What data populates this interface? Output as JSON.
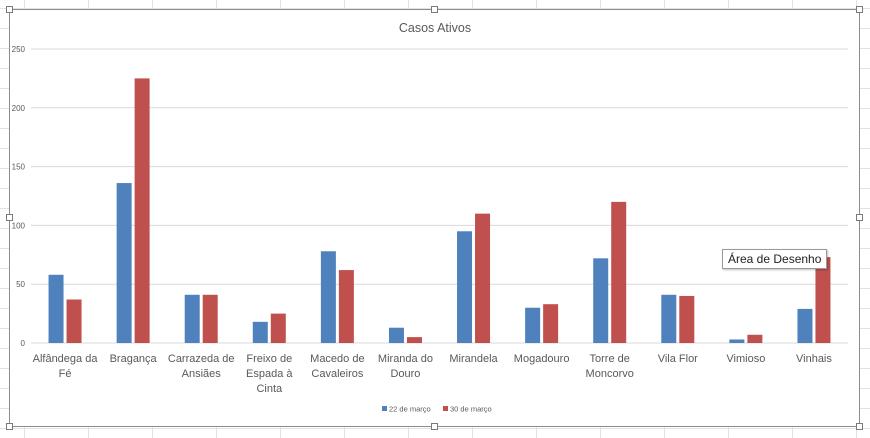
{
  "tooltip": "Área de Desenho",
  "colors": {
    "series1": "#4f81bd",
    "series2": "#c0504d",
    "gridline": "#d9d9d9",
    "axis_text": "#595959"
  },
  "chart_data": {
    "type": "bar",
    "title": "Casos Ativos",
    "xlabel": "",
    "ylabel": "",
    "ylim": [
      0,
      250
    ],
    "yticks": [
      0,
      50,
      100,
      150,
      200,
      250
    ],
    "grid": true,
    "legend": "bottom",
    "categories": [
      [
        "Alfândega da",
        "Fé"
      ],
      [
        "Bragança"
      ],
      [
        "Carrazeda de",
        "Ansiães"
      ],
      [
        "Freixo de",
        "Espada à",
        "Cinta"
      ],
      [
        "Macedo de",
        "Cavaleiros"
      ],
      [
        "Miranda do",
        "Douro"
      ],
      [
        "Mirandela"
      ],
      [
        "Mogadouro"
      ],
      [
        "Torre de",
        "Moncorvo"
      ],
      [
        "Vila Flor"
      ],
      [
        "Vimioso"
      ],
      [
        "Vinhais"
      ]
    ],
    "series": [
      {
        "name": "22 de março",
        "values": [
          58,
          136,
          41,
          18,
          78,
          13,
          95,
          30,
          72,
          41,
          3,
          29
        ]
      },
      {
        "name": "30 de março",
        "values": [
          37,
          225,
          41,
          25,
          62,
          5,
          110,
          33,
          120,
          40,
          7,
          73
        ]
      }
    ]
  }
}
